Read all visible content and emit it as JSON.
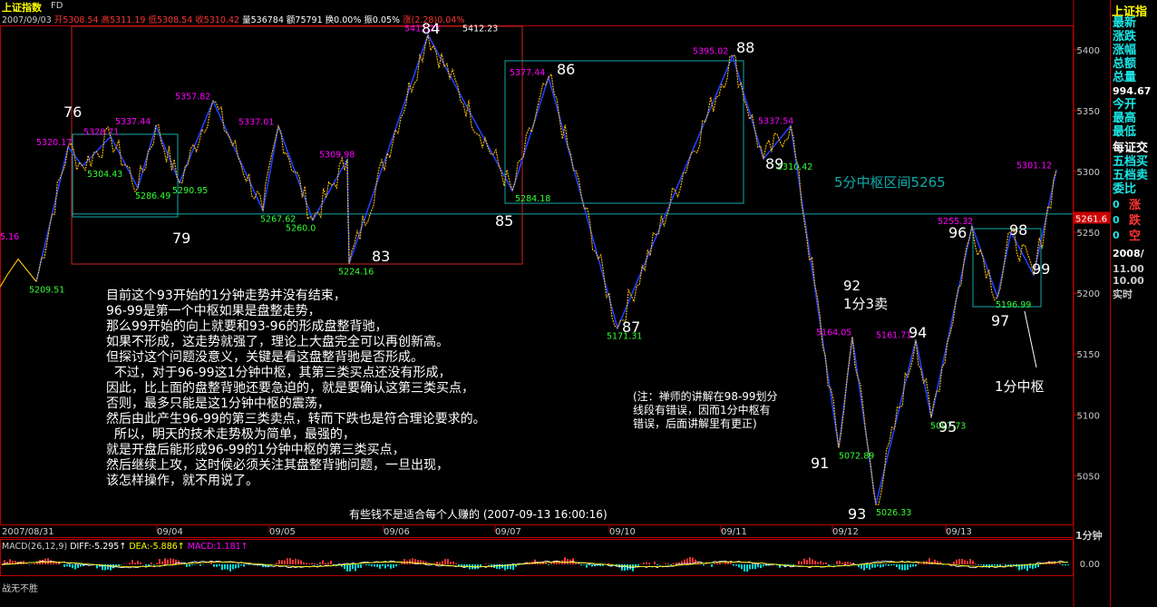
{
  "header": {
    "title": "上证指数",
    "period_tag": "FD",
    "date": "2007/09/03",
    "open": "开5308.54",
    "high": "高5311.19",
    "low": "低5308.54",
    "close": "收5310.42",
    "volume": "量536784",
    "amount": "额75791",
    "turnover": "换0.00%",
    "amplitude": "振0.05%",
    "change": "涨(2.28)0.04%"
  },
  "right_panel": {
    "title": "上证指",
    "labels": [
      "最新",
      "涨跌",
      "涨幅",
      "总额",
      "总量"
    ],
    "value": "994.67",
    "labels2": [
      "今开",
      "最高",
      "最低"
    ],
    "labels3": [
      "每证交",
      "五档买",
      "五档卖",
      "委比"
    ],
    "small_rows": [
      "0",
      "0",
      "0"
    ],
    "small_labels": [
      "涨",
      "跌",
      "空"
    ],
    "date": "2008/",
    "sub": [
      "11.00",
      "10.00",
      "实时"
    ],
    "period": "1分钟"
  },
  "chart_data": {
    "type": "line",
    "title": "上证指数 1分钟",
    "ylim": [
      5010,
      5420
    ],
    "y_ticks": [
      5050,
      5100,
      5150,
      5200,
      5250,
      5300,
      5350,
      5400
    ],
    "x_labels": [
      "2007/08/31",
      "09/04",
      "09/05",
      "09/06",
      "09/07",
      "09/10",
      "09/11",
      "09/12",
      "09/13"
    ],
    "price_label": "5261.6",
    "center_line": 5265,
    "legend_zone": "5分中枢区间5265",
    "pivots": [
      {
        "label": "",
        "price": 5209.51,
        "tag": "5209.51",
        "c": "#3f3"
      },
      {
        "label": "76",
        "price": 5320.17,
        "tag": "5320.17",
        "c": "#f0f"
      },
      {
        "label": "",
        "price": 5304.43,
        "tag": "5304.43",
        "c": "#3f3"
      },
      {
        "label": "",
        "price": 5328.71,
        "tag": "5328.71",
        "c": "#f0f"
      },
      {
        "label": "",
        "price": 5286.49,
        "tag": "5286.49",
        "c": "#3f3"
      },
      {
        "label": "",
        "price": 5337.44,
        "tag": "5337.44",
        "c": "#f0f"
      },
      {
        "label": "79",
        "price": 5290.95,
        "tag": "5290.95",
        "c": "#3f3"
      },
      {
        "label": "",
        "price": 5357.82,
        "tag": "5357.82",
        "c": "#f0f"
      },
      {
        "label": "",
        "price": 5267.62,
        "tag": "5267.62",
        "c": "#3f3"
      },
      {
        "label": "",
        "price": 5337.01,
        "tag": "5337.01",
        "c": "#f0f"
      },
      {
        "label": "",
        "price": 5260.0,
        "tag": "5260.0",
        "c": "#3f3"
      },
      {
        "label": "",
        "price": 5309.98,
        "tag": "5309.98",
        "c": "#f0f"
      },
      {
        "label": "83",
        "price": 5224.16,
        "tag": "5224.16",
        "c": "#3f3"
      },
      {
        "label": "",
        "price": 5412.23,
        "tag": "5412.23",
        "c": "#f0f"
      },
      {
        "label": "84",
        "price": 5412.23,
        "tag": "5412.23",
        "c": "#fff"
      },
      {
        "label": "85",
        "price": 5284.18,
        "tag": "5284.18",
        "c": "#3f3"
      },
      {
        "label": "86",
        "price": 5377.44,
        "tag": "5377.44",
        "c": "#f0f"
      },
      {
        "label": "87",
        "price": 5171.31,
        "tag": "5171.31",
        "c": "#3f3"
      },
      {
        "label": "88",
        "price": 5395.02,
        "tag": "5395.02",
        "c": "#f0f"
      },
      {
        "label": "89",
        "price": 5310.42,
        "tag": "5310.42",
        "c": "#3f3"
      },
      {
        "label": "",
        "price": 5337.54,
        "tag": "5337.54",
        "c": "#f0f"
      },
      {
        "label": "91",
        "price": 5072.89,
        "tag": "5072.89",
        "c": "#3f3"
      },
      {
        "label": "92",
        "price": 5164.05,
        "tag": "5164.05",
        "c": "#f0f"
      },
      {
        "label": "93",
        "price": 5026.33,
        "tag": "5026.33",
        "c": "#3f3"
      },
      {
        "label": "94",
        "price": 5161.71,
        "tag": "5161.71",
        "c": "#f0f"
      },
      {
        "label": "95",
        "price": 5097.73,
        "tag": "5097.73",
        "c": "#3f3"
      },
      {
        "label": "96",
        "price": 5255.32,
        "tag": "5255.32",
        "c": "#f0f"
      },
      {
        "label": "97",
        "price": 5196.99,
        "tag": "5196.99",
        "c": "#3f3"
      },
      {
        "label": "98",
        "price": 5250.0,
        "tag": "",
        "c": "#fff"
      },
      {
        "label": "99",
        "price": 5215.0,
        "tag": "",
        "c": "#fff"
      },
      {
        "label": "",
        "price": 5301.12,
        "tag": "5301.12",
        "c": "#f0f"
      },
      {
        "label": "",
        "price": 5253.0,
        "tag": "5.16",
        "c": "#f0f"
      }
    ]
  },
  "annotations": {
    "label_92": "92\n1分3卖",
    "label_1min": "1分中枢",
    "main_text": "目前这个93开始的1分钟走势并没有结束，\n96-99是第一个中枢如果是盘整走势，\n那么99开始的向上就要和93-96的形成盘整背驰，\n如果不形成，这走势就强了，理论上大盘完全可以再创新高。\n但探讨这个问题没意义，关键是看这盘整背驰是否形成。\n  不过，对于96-99这1分钟中枢，其第三类买点还没有形成，\n因此，比上面的盘整背驰还要急迫的，就是要确认这第三类买点，\n否则，最多只能是这1分钟中枢的震荡，\n然后由此产生96-99的第三类卖点，转而下跌也是符合理论要求的。\n  所以，明天的技术走势极为简单，最强的，\n就是开盘后能形成96-99的1分钟中枢的第三类买点，\n然后继续上攻，这时候必须关注其盘整背驰问题，一旦出现，\n该怎样操作，就不用说了。",
    "side_text": "(注：禅师的讲解在98-99划分\n线段有错误，因而1分中枢有\n错误，后面讲解里有更正)",
    "footer_text": "有些钱不是适合每个人赚的 (2007-09-13 16:00:16)"
  },
  "macd": {
    "header": "MACD(26,12,9)",
    "diff": "DIFF:-5.295↑",
    "dea": "DEA:-5.886↑",
    "macd": "MACD:1.181↑",
    "axis": "0.00",
    "footer": "战无不胜"
  }
}
